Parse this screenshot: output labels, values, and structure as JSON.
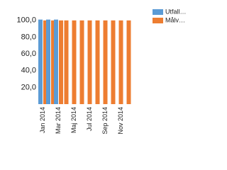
{
  "chart_data": {
    "type": "bar",
    "categories": [
      "Jan 2014",
      null,
      "Mar 2014",
      null,
      "Maj 2014",
      null,
      "Jul 2014",
      null,
      "Sep 2014",
      null,
      "Nov 2014",
      null
    ],
    "series": [
      {
        "name": "Utfall…",
        "color": "#5b9bd5",
        "values": [
          101,
          101,
          101,
          null,
          null,
          null,
          null,
          null,
          null,
          null,
          null,
          null
        ]
      },
      {
        "name": "Målv…",
        "color": "#ed7d31",
        "values": [
          100,
          100,
          100,
          100,
          100,
          100,
          100,
          100,
          100,
          100,
          100,
          100
        ]
      }
    ],
    "ylim": [
      0,
      110
    ],
    "yticks": [
      {
        "value": 20,
        "label": "20,0"
      },
      {
        "value": 40,
        "label": "40,0"
      },
      {
        "value": 60,
        "label": "60,0"
      },
      {
        "value": 80,
        "label": "80,0"
      },
      {
        "value": 100,
        "label": "100,0"
      }
    ],
    "legend": "top-right",
    "grid": false
  }
}
